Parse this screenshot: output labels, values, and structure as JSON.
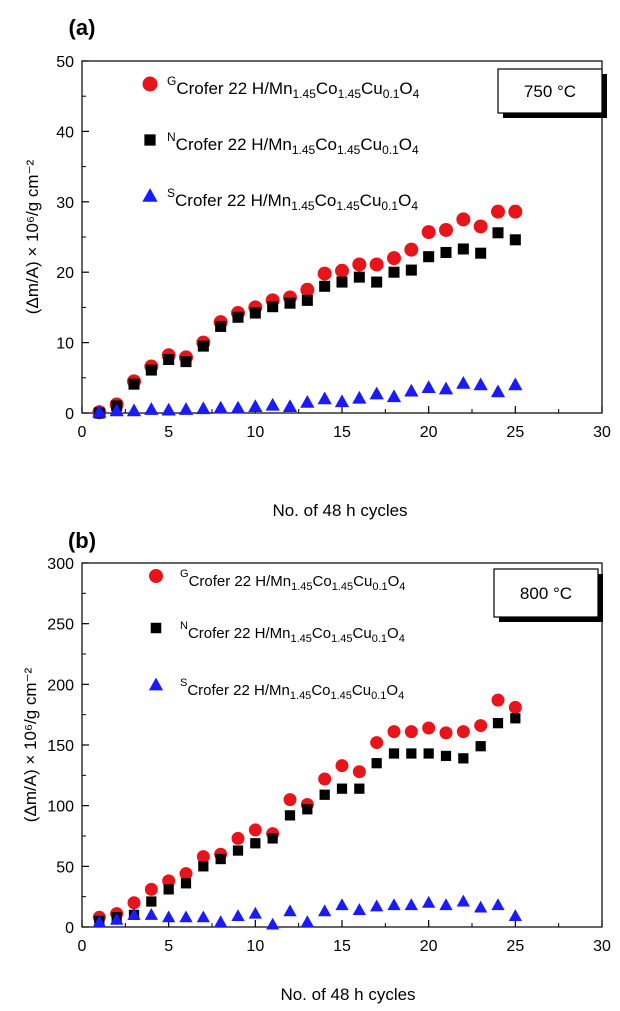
{
  "chart_data": [
    {
      "panel_label": "(a)",
      "type": "scatter",
      "temperature_label": "750 °C",
      "xlabel": "No. of 48 h cycles",
      "ylabel": "(Δm/A) × 10⁶/g cm⁻²",
      "xlim": [
        0,
        30
      ],
      "ylim": [
        0,
        50
      ],
      "xticks": [
        0,
        5,
        10,
        15,
        20,
        25,
        30
      ],
      "yticks": [
        0,
        10,
        20,
        30,
        40,
        50
      ],
      "grid": false,
      "legend_position": "top-left",
      "series": [
        {
          "name": "GCrofer 22 H/Mn1.45Co1.45Cu0.1O4",
          "legend": {
            "sup": "G",
            "base": "Crofer 22 H/Mn",
            "s1": "1.45",
            "co": "Co",
            "s2": "1.45",
            "cu": "Cu",
            "s3": "0.1",
            "o": "O",
            "s4": "4"
          },
          "marker": "circle",
          "color": "#e8141b",
          "x": [
            1,
            2,
            3,
            4,
            5,
            6,
            7,
            8,
            9,
            10,
            11,
            12,
            13,
            14,
            15,
            16,
            17,
            18,
            19,
            20,
            21,
            22,
            23,
            24,
            25
          ],
          "y": [
            0.1,
            1.2,
            4.5,
            6.6,
            8.2,
            7.9,
            10.0,
            12.9,
            14.2,
            15.0,
            16.0,
            16.4,
            17.5,
            19.8,
            20.2,
            21.1,
            21.1,
            22.0,
            23.2,
            25.7,
            26.0,
            27.5,
            26.5,
            28.6,
            28.6
          ]
        },
        {
          "name": "NCrofer 22 H/Mn1.45Co1.45Cu0.1O4",
          "legend": {
            "sup": "N",
            "base": "Crofer 22 H/Mn",
            "s1": "1.45",
            "co": "Co",
            "s2": "1.45",
            "cu": "Cu",
            "s3": "0.1",
            "o": "O",
            "s4": "4"
          },
          "marker": "square",
          "color": "#000000",
          "x": [
            1,
            2,
            3,
            4,
            5,
            6,
            7,
            8,
            9,
            10,
            11,
            12,
            13,
            14,
            15,
            16,
            17,
            18,
            19,
            20,
            21,
            22,
            23,
            24,
            25
          ],
          "y": [
            0.0,
            1.0,
            4.1,
            6.1,
            7.6,
            7.3,
            9.5,
            12.3,
            13.6,
            14.2,
            15.1,
            15.6,
            16.0,
            18.0,
            18.6,
            19.3,
            18.6,
            20.0,
            20.3,
            22.2,
            22.8,
            23.3,
            22.7,
            25.6,
            24.6
          ]
        },
        {
          "name": "SCrofer 22 H/Mn1.45Co1.45Cu0.1O4",
          "legend": {
            "sup": "S",
            "base": "Crofer 22 H/Mn",
            "s1": "1.45",
            "co": "Co",
            "s2": "1.45",
            "cu": "Cu",
            "s3": "0.1",
            "o": "O",
            "s4": "4"
          },
          "marker": "triangle",
          "color": "#1a1aff",
          "x": [
            1,
            2,
            3,
            4,
            5,
            6,
            7,
            8,
            9,
            10,
            11,
            12,
            13,
            14,
            15,
            16,
            17,
            18,
            19,
            20,
            21,
            22,
            23,
            24,
            25
          ],
          "y": [
            0.1,
            0.3,
            0.3,
            0.5,
            0.4,
            0.5,
            0.6,
            0.7,
            0.7,
            0.9,
            1.1,
            0.9,
            1.5,
            2.0,
            1.6,
            2.1,
            2.7,
            2.3,
            3.1,
            3.6,
            3.4,
            4.2,
            4.0,
            3.0,
            4.0
          ]
        }
      ]
    },
    {
      "panel_label": "(b)",
      "type": "scatter",
      "temperature_label": "800 °C",
      "xlabel": "No. of 48 h cycles",
      "ylabel": "(Δm/A) × 10⁶/g cm⁻²",
      "xlim": [
        0,
        30
      ],
      "ylim": [
        0,
        300
      ],
      "xticks": [
        0,
        5,
        10,
        15,
        20,
        25,
        30
      ],
      "yticks": [
        0,
        50,
        100,
        150,
        200,
        250,
        300
      ],
      "grid": false,
      "legend_position": "top-left",
      "series": [
        {
          "name": "GCrofer 22 H/Mn1.45Co1.45Cu0.1O4",
          "legend": {
            "sup": "G",
            "base": "Crofer 22 H/Mn",
            "s1": "1.45",
            "co": "Co",
            "s2": "1.45",
            "cu": "Cu",
            "s3": "0.1",
            "o": "O",
            "s4": "4"
          },
          "marker": "circle",
          "color": "#e8141b",
          "x": [
            1,
            2,
            3,
            4,
            5,
            6,
            7,
            8,
            9,
            10,
            11,
            12,
            13,
            14,
            15,
            16,
            17,
            18,
            19,
            20,
            21,
            22,
            23,
            24,
            25
          ],
          "y": [
            8,
            11,
            20,
            31,
            38,
            44,
            58,
            60,
            73,
            80,
            77,
            105,
            101,
            122,
            133,
            128,
            152,
            161,
            161,
            164,
            160,
            161,
            166,
            187,
            181
          ]
        },
        {
          "name": "NCrofer 22 H/Mn1.45Co1.45Cu0.1O4",
          "legend": {
            "sup": "N",
            "base": "Crofer 22 H/Mn",
            "s1": "1.45",
            "co": "Co",
            "s2": "1.45",
            "cu": "Cu",
            "s3": "0.1",
            "o": "O",
            "s4": "4"
          },
          "marker": "square",
          "color": "#000000",
          "x": [
            1,
            2,
            3,
            4,
            5,
            6,
            7,
            8,
            9,
            10,
            11,
            12,
            13,
            14,
            15,
            16,
            17,
            18,
            19,
            20,
            21,
            22,
            23,
            24,
            25
          ],
          "y": [
            5,
            8,
            10,
            21,
            31,
            36,
            50,
            56,
            63,
            69,
            73,
            92,
            97,
            109,
            114,
            114,
            135,
            143,
            143,
            143,
            141,
            139,
            149,
            168,
            172
          ]
        },
        {
          "name": "SCrofer 22 H/Mn1.45Co1.45Cu0.1O4",
          "legend": {
            "sup": "S",
            "base": "Crofer 22 H/Mn",
            "s1": "1.45",
            "co": "Co",
            "s2": "1.45",
            "cu": "Cu",
            "s3": "0.1",
            "o": "O",
            "s4": "4"
          },
          "marker": "triangle",
          "color": "#1a1aff",
          "x": [
            1,
            2,
            3,
            4,
            5,
            6,
            7,
            8,
            9,
            10,
            11,
            12,
            13,
            14,
            15,
            16,
            17,
            18,
            19,
            20,
            21,
            22,
            23,
            24,
            25
          ],
          "y": [
            4,
            6,
            10,
            10,
            8,
            8,
            8,
            4,
            9,
            11,
            2,
            13,
            4,
            13,
            18,
            14,
            17,
            18,
            18,
            20,
            18,
            21,
            16,
            18,
            9
          ]
        }
      ]
    }
  ]
}
